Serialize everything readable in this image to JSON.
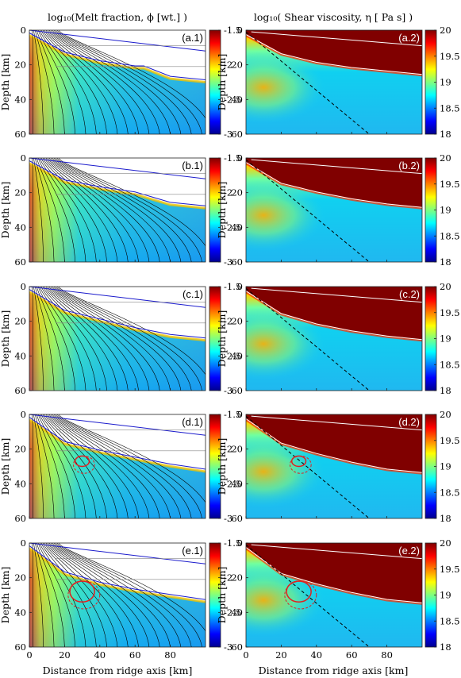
{
  "figure": {
    "left_title": "log₁₀(Melt fraction, ϕ [wt.] )",
    "right_title": "log₁₀( Shear viscosity, η [ Pa s] )",
    "ylabel": "Depth [km]",
    "xlabel": "Distance from ridge axis [km]",
    "colors": {
      "ridge_plate_line": "#1a1acc",
      "isotherm_line": "#ffffff",
      "streamline": "#000000",
      "contour": "#e02020",
      "viscosity_high": "#800000"
    }
  },
  "chart_data": [
    {
      "panel": "a.1",
      "type": "heatmap",
      "quantity": "log10 melt fraction",
      "xlim": [
        0,
        100
      ],
      "ylim": [
        0,
        60
      ],
      "y_reversed": true,
      "xticks": [
        0,
        20,
        40,
        60,
        80
      ],
      "yticks": [
        0,
        20,
        40,
        60
      ],
      "clim": [
        -3,
        -1.5
      ],
      "cticks": [
        -1.5,
        -2,
        -2.5,
        -3
      ],
      "colormap": "jet",
      "overlays": [
        "streamlines",
        "blue-lines"
      ],
      "melt_region_boundary_depth_km": [
        [
          0,
          3
        ],
        [
          20,
          14
        ],
        [
          40,
          19
        ],
        [
          60,
          22
        ],
        [
          65,
          22
        ],
        [
          80,
          28
        ],
        [
          100,
          30
        ]
      ]
    },
    {
      "panel": "a.2",
      "type": "heatmap",
      "quantity": "log10 shear viscosity",
      "xlim": [
        0,
        100
      ],
      "ylim": [
        0,
        60
      ],
      "y_reversed": true,
      "xticks": [
        0,
        20,
        40,
        60,
        80
      ],
      "yticks": [
        0,
        20,
        40,
        60
      ],
      "clim": [
        18,
        20
      ],
      "cticks": [
        20,
        19.5,
        19,
        18.5,
        18
      ],
      "colormap": "jet",
      "overlays": [
        "white-lines",
        "dashed-line"
      ],
      "lithosphere_base_depth_km": [
        [
          0,
          3
        ],
        [
          20,
          14
        ],
        [
          40,
          19
        ],
        [
          60,
          22
        ],
        [
          80,
          24
        ],
        [
          100,
          26
        ]
      ]
    },
    {
      "panel": "b.1",
      "type": "heatmap",
      "quantity": "log10 melt fraction",
      "xlim": [
        0,
        100
      ],
      "ylim": [
        0,
        60
      ],
      "y_reversed": true,
      "xticks": [
        0,
        20,
        40,
        60,
        80
      ],
      "yticks": [
        0,
        20,
        40,
        60
      ],
      "clim": [
        -3,
        -1.5
      ],
      "cticks": [
        -1.5,
        -2,
        -2.5,
        -3
      ],
      "colormap": "jet",
      "overlays": [
        "streamlines",
        "blue-lines"
      ],
      "melt_region_boundary_depth_km": [
        [
          0,
          3
        ],
        [
          20,
          14
        ],
        [
          40,
          18
        ],
        [
          60,
          21
        ],
        [
          80,
          27
        ],
        [
          100,
          29
        ]
      ]
    },
    {
      "panel": "b.2",
      "type": "heatmap",
      "quantity": "log10 shear viscosity",
      "xlim": [
        0,
        100
      ],
      "ylim": [
        0,
        60
      ],
      "y_reversed": true,
      "xticks": [
        0,
        20,
        40,
        60,
        80
      ],
      "yticks": [
        0,
        20,
        40,
        60
      ],
      "clim": [
        18,
        20
      ],
      "cticks": [
        20,
        19.5,
        19,
        18.5,
        18
      ],
      "colormap": "jet",
      "overlays": [
        "white-lines",
        "dashed-line"
      ],
      "lithosphere_base_depth_km": [
        [
          0,
          3
        ],
        [
          20,
          15
        ],
        [
          40,
          20
        ],
        [
          60,
          24
        ],
        [
          80,
          27
        ],
        [
          100,
          29
        ]
      ]
    },
    {
      "panel": "c.1",
      "type": "heatmap",
      "quantity": "log10 melt fraction",
      "xlim": [
        0,
        100
      ],
      "ylim": [
        0,
        60
      ],
      "y_reversed": true,
      "xticks": [
        0,
        20,
        40,
        60,
        80
      ],
      "yticks": [
        0,
        20,
        40,
        60
      ],
      "clim": [
        -3,
        -1.5
      ],
      "cticks": [
        -1.5,
        -2,
        -2.5,
        -3
      ],
      "colormap": "jet",
      "overlays": [
        "streamlines",
        "blue-lines"
      ],
      "melt_region_boundary_depth_km": [
        [
          0,
          3
        ],
        [
          20,
          15
        ],
        [
          40,
          20
        ],
        [
          60,
          25
        ],
        [
          80,
          29
        ],
        [
          100,
          31
        ]
      ]
    },
    {
      "panel": "c.2",
      "type": "heatmap",
      "quantity": "log10 shear viscosity",
      "xlim": [
        0,
        100
      ],
      "ylim": [
        0,
        60
      ],
      "y_reversed": true,
      "xticks": [
        0,
        20,
        40,
        60,
        80
      ],
      "yticks": [
        0,
        20,
        40,
        60
      ],
      "clim": [
        18,
        20
      ],
      "cticks": [
        20,
        19.5,
        19,
        18.5,
        18
      ],
      "colormap": "jet",
      "overlays": [
        "white-lines",
        "dashed-line"
      ],
      "lithosphere_base_depth_km": [
        [
          0,
          3
        ],
        [
          20,
          16
        ],
        [
          40,
          22
        ],
        [
          60,
          26
        ],
        [
          80,
          29
        ],
        [
          100,
          31
        ]
      ]
    },
    {
      "panel": "d.1",
      "type": "heatmap",
      "quantity": "log10 melt fraction",
      "xlim": [
        0,
        100
      ],
      "ylim": [
        0,
        60
      ],
      "y_reversed": true,
      "xticks": [
        0,
        20,
        40,
        60,
        80
      ],
      "yticks": [
        0,
        20,
        40,
        60
      ],
      "clim": [
        -3,
        -1.5
      ],
      "cticks": [
        -1.5,
        -2,
        -2.5,
        -3
      ],
      "colormap": "jet",
      "overlays": [
        "streamlines",
        "blue-lines",
        "red-contour"
      ],
      "melt_region_boundary_depth_km": [
        [
          0,
          3
        ],
        [
          20,
          17
        ],
        [
          40,
          22
        ],
        [
          60,
          26
        ],
        [
          80,
          30
        ],
        [
          100,
          33
        ]
      ],
      "contour_center_km": [
        30,
        27
      ]
    },
    {
      "panel": "d.2",
      "type": "heatmap",
      "quantity": "log10 shear viscosity",
      "xlim": [
        0,
        100
      ],
      "ylim": [
        0,
        60
      ],
      "y_reversed": true,
      "xticks": [
        0,
        20,
        40,
        60,
        80
      ],
      "yticks": [
        0,
        20,
        40,
        60
      ],
      "clim": [
        18,
        20
      ],
      "cticks": [
        20,
        19.5,
        19,
        18.5,
        18
      ],
      "colormap": "jet",
      "overlays": [
        "white-lines",
        "dashed-line",
        "red-contour"
      ],
      "lithosphere_base_depth_km": [
        [
          0,
          3
        ],
        [
          20,
          17
        ],
        [
          40,
          23
        ],
        [
          60,
          28
        ],
        [
          80,
          32
        ],
        [
          100,
          34
        ]
      ],
      "contour_center_km": [
        30,
        27
      ]
    },
    {
      "panel": "e.1",
      "type": "heatmap",
      "quantity": "log10 melt fraction",
      "xlim": [
        0,
        100
      ],
      "ylim": [
        0,
        60
      ],
      "y_reversed": true,
      "xticks": [
        0,
        20,
        40,
        60,
        80
      ],
      "yticks": [
        0,
        20,
        40,
        60
      ],
      "clim": [
        -3,
        -1.5
      ],
      "cticks": [
        -1.5,
        -2,
        -2.5,
        -3
      ],
      "colormap": "jet",
      "overlays": [
        "streamlines",
        "blue-lines",
        "red-contour"
      ],
      "melt_region_boundary_depth_km": [
        [
          0,
          3
        ],
        [
          20,
          18
        ],
        [
          40,
          24
        ],
        [
          60,
          28
        ],
        [
          80,
          31
        ],
        [
          100,
          34
        ]
      ],
      "contour_center_km": [
        30,
        28
      ]
    },
    {
      "panel": "e.2",
      "type": "heatmap",
      "quantity": "log10 shear viscosity",
      "xlim": [
        0,
        100
      ],
      "ylim": [
        0,
        60
      ],
      "y_reversed": true,
      "xticks": [
        0,
        20,
        40,
        60,
        80
      ],
      "yticks": [
        0,
        20,
        40,
        60
      ],
      "clim": [
        18,
        20
      ],
      "cticks": [
        20,
        19.5,
        19,
        18.5,
        18
      ],
      "colormap": "jet",
      "overlays": [
        "white-lines",
        "dashed-line",
        "red-contour"
      ],
      "lithosphere_base_depth_km": [
        [
          0,
          3
        ],
        [
          20,
          18
        ],
        [
          40,
          24
        ],
        [
          60,
          29
        ],
        [
          80,
          33
        ],
        [
          100,
          35
        ]
      ],
      "contour_center_km": [
        30,
        28
      ]
    }
  ]
}
